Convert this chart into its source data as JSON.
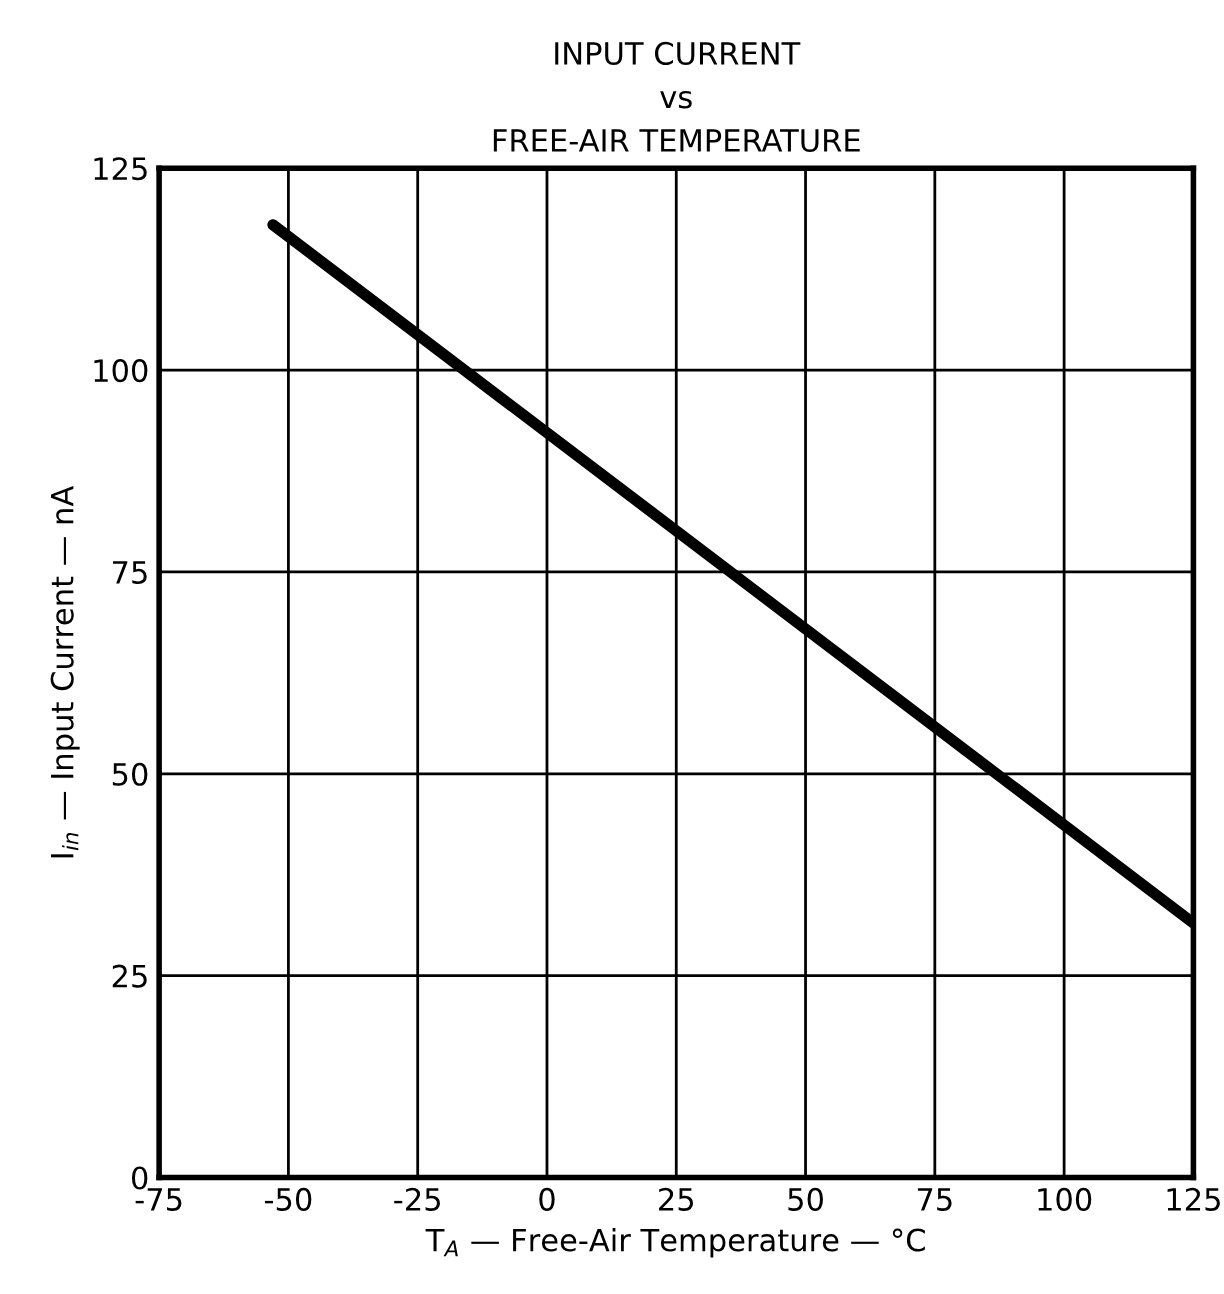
{
  "chart_data": {
    "type": "line",
    "title": "INPUT CURRENT\nvs\nFREE-AIR TEMPERATURE",
    "xlabel": "T$_{A}$ — Free-Air Temperature — °C",
    "ylabel": "I$_{in}$ — Input Current — nA",
    "series": [
      {
        "color": "#000000",
        "x": [
          -53,
          125
        ],
        "values": [
          118,
          31.5
        ]
      }
    ],
    "xlim": [
      -75,
      125
    ],
    "xticks": [
      -75,
      -50,
      -25,
      0,
      25,
      50,
      75,
      100,
      125
    ],
    "ylim": [
      0,
      125
    ],
    "yticks": [
      0,
      25,
      50,
      75,
      100,
      125
    ],
    "grid": true,
    "marker": "none",
    "line_style": "solid"
  }
}
